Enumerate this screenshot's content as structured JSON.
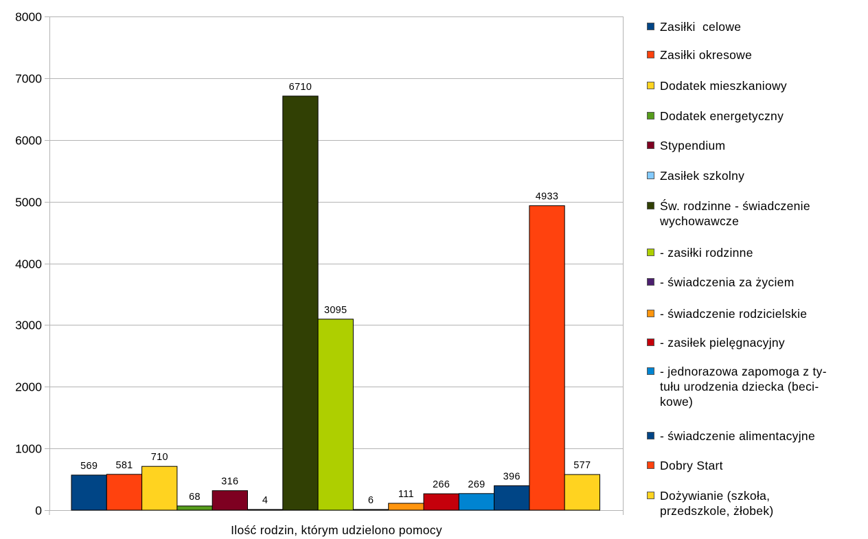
{
  "chart_data": {
    "type": "bar",
    "xlabel": "Ilość rodzin, którym udzielono pomocy",
    "ylim": [
      0,
      8000
    ],
    "yticks": [
      "0",
      "1000",
      "2000",
      "3000",
      "4000",
      "5000",
      "6000",
      "7000",
      "8000"
    ],
    "grid": true,
    "legend_position": "right",
    "series": [
      {
        "name": "Zasiłki  celowe",
        "value": 569,
        "color": "#004586"
      },
      {
        "name": "Zasiłki okresowe",
        "value": 581,
        "color": "#ff420e"
      },
      {
        "name": "Dodatek mieszkaniowy",
        "value": 710,
        "color": "#ffd320"
      },
      {
        "name": "Dodatek energetyczny",
        "value": 68,
        "color": "#579d1c"
      },
      {
        "name": "Stypendium",
        "value": 316,
        "color": "#7e0021"
      },
      {
        "name": "Zasiłek szkolny",
        "value": 4,
        "color": "#83caff"
      },
      {
        "name": "Św. rodzinne - świadczenie\nwychowawcze",
        "value": 6710,
        "color": "#314004"
      },
      {
        "name": "- zasiłki rodzinne",
        "value": 3095,
        "color": "#aecf00"
      },
      {
        "name": "- świadczenia za życiem",
        "value": 6,
        "color": "#4b1f6f"
      },
      {
        "name": "- świadczenie rodzicielskie",
        "value": 111,
        "color": "#ff950e"
      },
      {
        "name": "- zasiłek pielęgnacyjny",
        "value": 266,
        "color": "#c5000b"
      },
      {
        "name": "- jednorazowa zapomoga z ty-\ntułu urodzenia dziecka (beci-\nkowe)",
        "value": 269,
        "color": "#0084d1"
      },
      {
        "name": "- świadczenie alimentacyjne",
        "value": 396,
        "color": "#004586"
      },
      {
        "name": "Dobry Start",
        "value": 4933,
        "color": "#ff420e"
      },
      {
        "name": "Dożywianie (szkoła,\nprzedszkole, żłobek)",
        "value": 577,
        "color": "#ffd320"
      }
    ]
  }
}
